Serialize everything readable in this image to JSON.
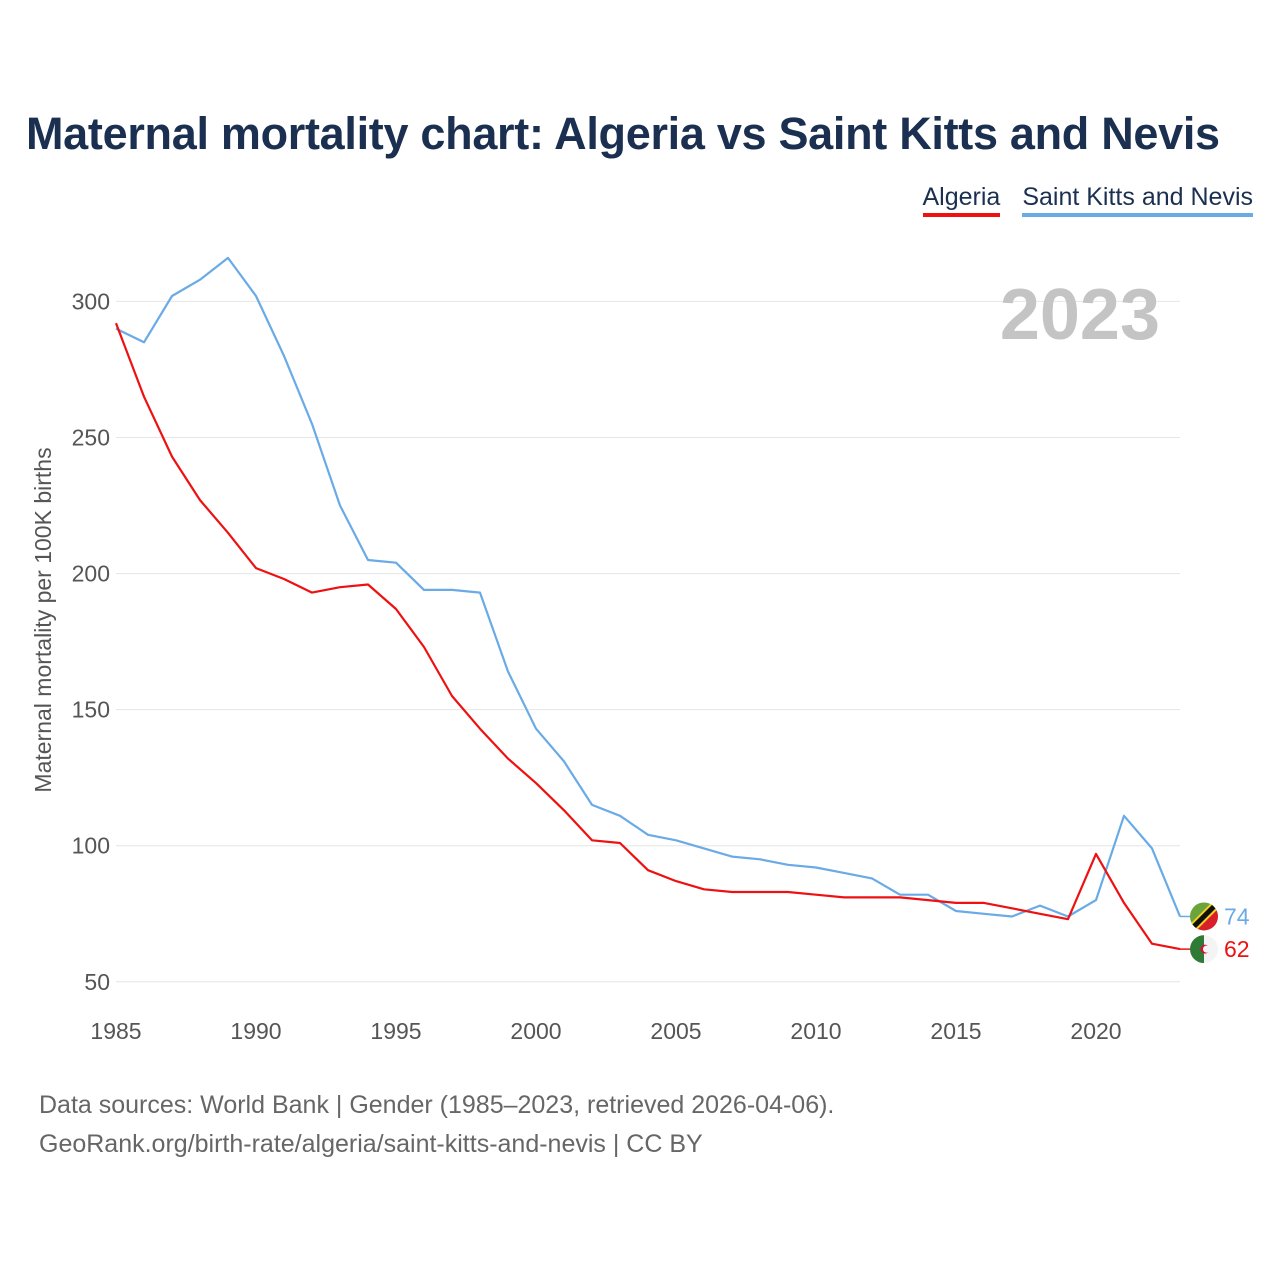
{
  "title": "Maternal mortality chart: Algeria vs Saint Kitts and Nevis",
  "legend": [
    "Algeria",
    "Saint Kitts and Nevis"
  ],
  "source": {
    "line1": "Data sources: World Bank | Gender (1985–2023, retrieved 2026-04-06).",
    "line2": "GeoRank.org/birth-rate/algeria/saint-kitts-and-nevis | CC BY"
  },
  "chart_data": {
    "type": "line",
    "title": "Maternal mortality chart: Algeria vs Saint Kitts and Nevis",
    "ylabel": "Maternal mortality per 100K births",
    "xlabel": "",
    "year_label": "2023",
    "xlim": [
      1985,
      2023
    ],
    "ylim": [
      40,
      320
    ],
    "xticks": [
      1985,
      1990,
      1995,
      2000,
      2005,
      2010,
      2015,
      2020
    ],
    "yticks": [
      50,
      100,
      150,
      200,
      250,
      300
    ],
    "grid": true,
    "legend_position": "top-right",
    "x": [
      1985,
      1986,
      1987,
      1988,
      1989,
      1990,
      1991,
      1992,
      1993,
      1994,
      1995,
      1996,
      1997,
      1998,
      1999,
      2000,
      2001,
      2002,
      2003,
      2004,
      2005,
      2006,
      2007,
      2008,
      2009,
      2010,
      2011,
      2012,
      2013,
      2014,
      2015,
      2016,
      2017,
      2018,
      2019,
      2020,
      2021,
      2022,
      2023
    ],
    "series": [
      {
        "name": "Saint Kitts and Nevis",
        "color": "#6aaae6",
        "end_label": "74",
        "flag": "saint-kitts-and-nevis-flag-icon",
        "values": [
          290,
          285,
          302,
          308,
          316,
          302,
          280,
          255,
          225,
          205,
          204,
          194,
          194,
          193,
          164,
          143,
          131,
          115,
          111,
          104,
          102,
          99,
          96,
          95,
          93,
          92,
          90,
          88,
          82,
          82,
          76,
          75,
          74,
          78,
          74,
          80,
          111,
          99,
          74
        ]
      },
      {
        "name": "Algeria",
        "color": "#ee1111",
        "end_label": "62",
        "flag": "algeria-flag-icon",
        "values": [
          292,
          265,
          243,
          227,
          215,
          202,
          198,
          193,
          195,
          196,
          187,
          173,
          155,
          143,
          132,
          123,
          113,
          102,
          101,
          91,
          87,
          84,
          83,
          83,
          83,
          82,
          81,
          81,
          81,
          80,
          79,
          79,
          77,
          75,
          73,
          97,
          79,
          64,
          62
        ]
      }
    ]
  }
}
